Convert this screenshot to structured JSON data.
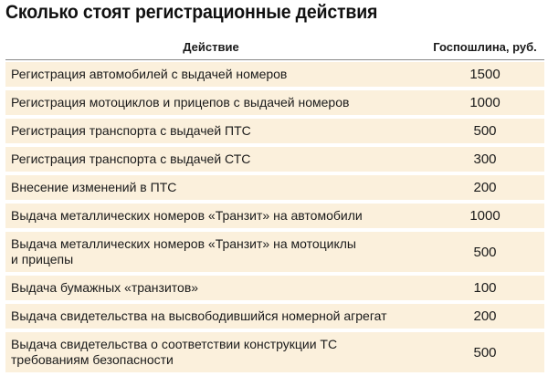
{
  "title": "Сколько стоят регистрационные действия",
  "header": {
    "action": "Действие",
    "fee": "Госпошлина, руб."
  },
  "rows": [
    {
      "action": "Регистрация автомобилей с выдачей номеров",
      "fee": "1500"
    },
    {
      "action": "Регистрация мотоциклов и прицепов с выдачей номеров",
      "fee": "1000"
    },
    {
      "action": "Регистрация транспорта с выдачей ПТС",
      "fee": "500"
    },
    {
      "action": "Регистрация транспорта с выдачей СТС",
      "fee": "300"
    },
    {
      "action": "Внесение изменений в ПТС",
      "fee": "200"
    },
    {
      "action": "Выдача металлических номеров «Транзит» на автомобили",
      "fee": "1000"
    },
    {
      "action": "Выдача металлических номеров «Транзит» на мотоциклы и прицепы",
      "fee": "500"
    },
    {
      "action": "Выдача бумажных «транзитов»",
      "fee": "100"
    },
    {
      "action": "Выдача свидетельства на высвободившийся номерной агрегат",
      "fee": "200"
    },
    {
      "action": "Выдача свидетельства о соответствии конструкции ТС требованиям безопасности",
      "fee": "500"
    }
  ]
}
